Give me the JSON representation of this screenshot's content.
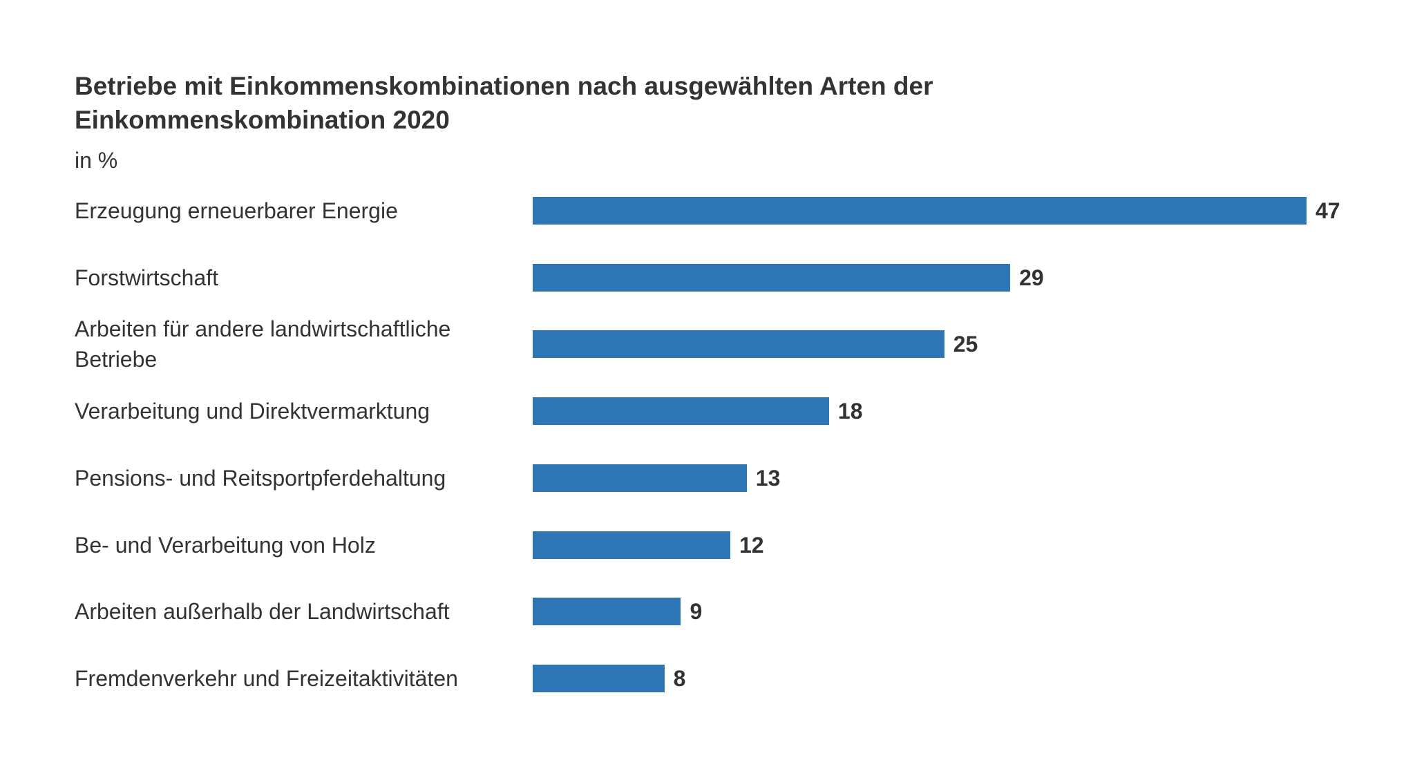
{
  "chart_data": {
    "type": "bar",
    "orientation": "horizontal",
    "title": "Betriebe mit Einkommenskombinationen nach ausgewählten Arten der Einkommenskombination 2020",
    "subtitle": "in %",
    "categories": [
      "Erzeugung erneuerbarer Energie",
      "Forstwirtschaft",
      "Arbeiten für andere landwirtschaftliche Betriebe",
      "Verarbeitung und Direktvermarktung",
      "Pensions- und Reitsportpferdehaltung",
      "Be- und Verarbeitung von Holz",
      "Arbeiten außerhalb der Landwirtschaft",
      "Fremdenverkehr und Freizeitaktivitäten"
    ],
    "values": [
      47,
      29,
      25,
      18,
      13,
      12,
      9,
      8
    ],
    "color": "#2e75b6"
  }
}
